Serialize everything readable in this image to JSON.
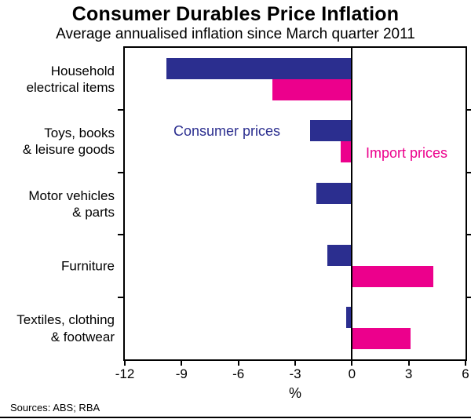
{
  "header": {
    "title": "Consumer Durables Price Inflation",
    "subtitle": "Average annualised inflation since March quarter 2011"
  },
  "footer": {
    "sources": "Sources: ABS; RBA"
  },
  "chart_data": {
    "type": "bar",
    "orientation": "horizontal",
    "title": "Consumer Durables Price Inflation",
    "subtitle": "Average annualised inflation since March quarter 2011",
    "categories": [
      "Household\nelectrical items",
      "Toys, books\n& leisure goods",
      "Motor vehicles\n& parts",
      "Furniture",
      "Textiles, clothing\n& footwear"
    ],
    "series": [
      {
        "name": "Consumer prices",
        "color": "#2b2e8f",
        "values": [
          -9.8,
          -2.2,
          -1.9,
          -1.3,
          -0.3
        ]
      },
      {
        "name": "Import prices",
        "color": "#ec008c",
        "values": [
          -4.2,
          -0.6,
          0,
          4.3,
          3.1
        ]
      }
    ],
    "xlabel": "%",
    "xlim": [
      -12,
      6
    ],
    "xticks": [
      -12,
      -9,
      -6,
      -3,
      0,
      3,
      6
    ],
    "grid": false,
    "legend_position": "inline-annotations",
    "axis_color": "#000000",
    "background_color": "#ffffff"
  }
}
